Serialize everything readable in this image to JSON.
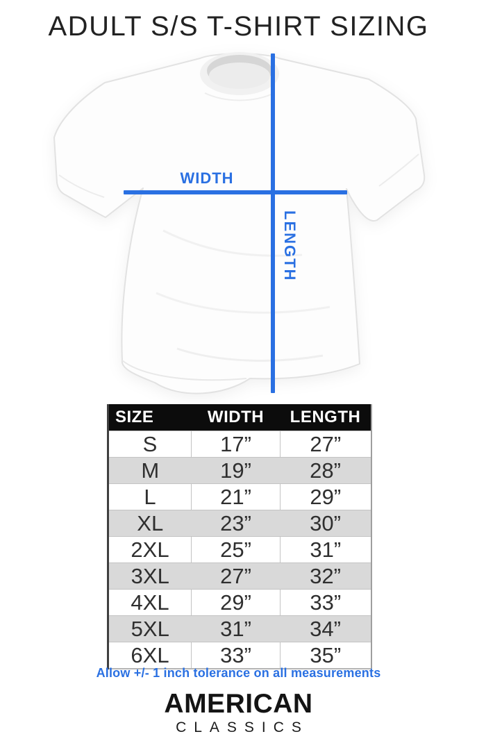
{
  "title": "ADULT S/S T-SHIRT SIZING",
  "diagram": {
    "width_label": "WIDTH",
    "length_label": "LENGTH"
  },
  "size_table": {
    "headers": [
      "SIZE",
      "WIDTH",
      "LENGTH"
    ],
    "rows": [
      {
        "size": "S",
        "width": "17”",
        "length": "27”"
      },
      {
        "size": "M",
        "width": "19”",
        "length": "28”"
      },
      {
        "size": "L",
        "width": "21”",
        "length": "29”"
      },
      {
        "size": "XL",
        "width": "23”",
        "length": "30”"
      },
      {
        "size": "2XL",
        "width": "25”",
        "length": "31”"
      },
      {
        "size": "3XL",
        "width": "27”",
        "length": "32”"
      },
      {
        "size": "4XL",
        "width": "29”",
        "length": "33”"
      },
      {
        "size": "5XL",
        "width": "31”",
        "length": "34”"
      },
      {
        "size": "6XL",
        "width": "33”",
        "length": "35”"
      }
    ]
  },
  "tolerance_note": "Allow +/- 1 inch tolerance on all measurements",
  "brand": {
    "line1": "AMERICAN",
    "line2": "CLASSICS"
  },
  "colors": {
    "accent_blue": "#2a70e2",
    "header_bg": "#0c0c0c",
    "row_alt_gray": "#d9d9d9"
  }
}
